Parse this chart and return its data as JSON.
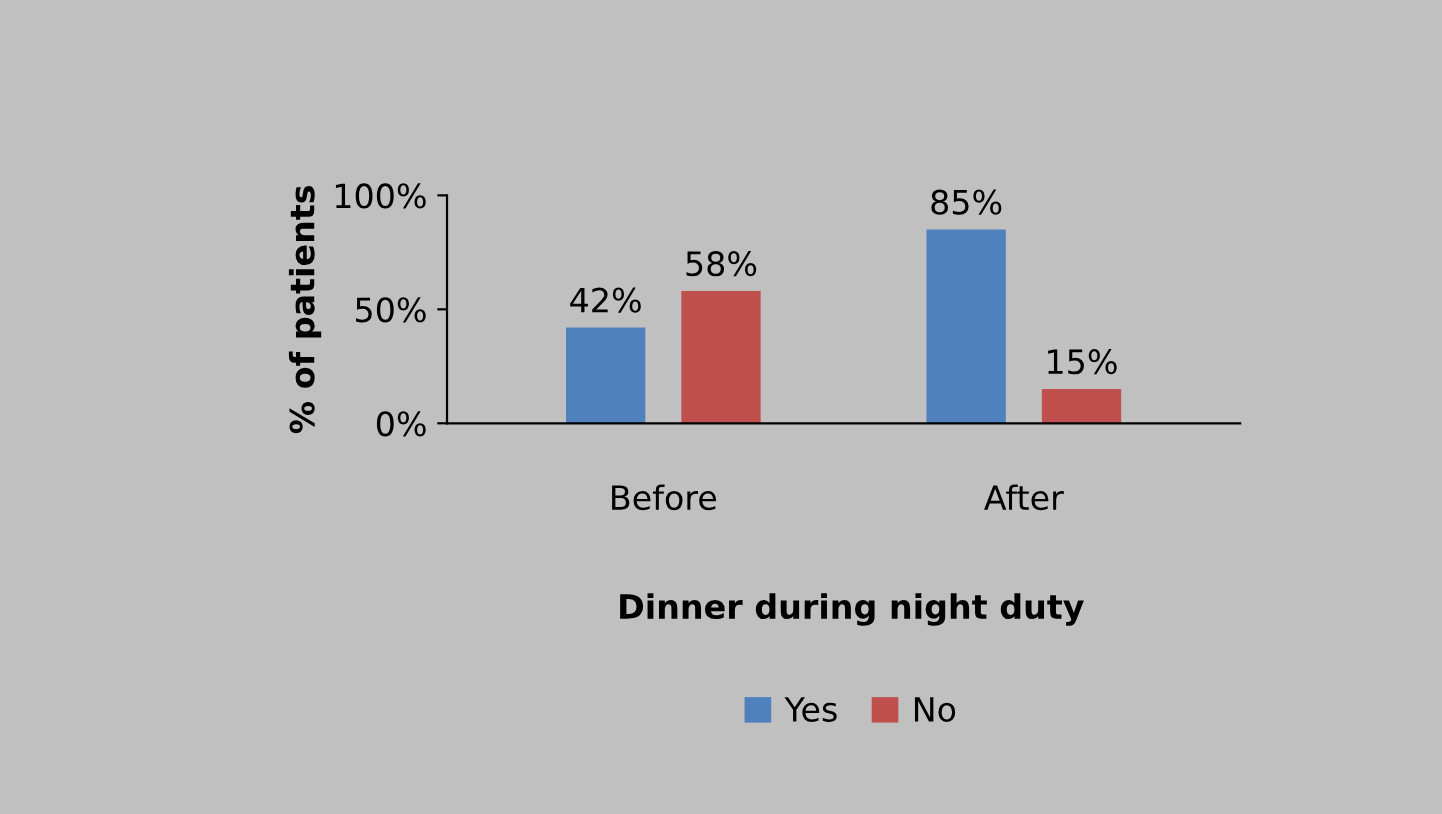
{
  "chart_data": {
    "type": "bar",
    "categories": [
      "Before",
      "After"
    ],
    "series": [
      {
        "name": "Yes",
        "color": "#4f81bd",
        "values": [
          42,
          85
        ],
        "value_labels": [
          "42%",
          "85%"
        ]
      },
      {
        "name": "No",
        "color": "#c0504d",
        "values": [
          58,
          15
        ],
        "value_labels": [
          "58%",
          "15%"
        ]
      }
    ],
    "ylim": [
      0,
      100
    ],
    "yticks": [
      {
        "value": 0,
        "label": "0%"
      },
      {
        "value": 50,
        "label": "50%"
      },
      {
        "value": 100,
        "label": "100%"
      }
    ],
    "ylabel": "% of patients",
    "xlabel": "Dinner during night duty",
    "legend": "bottom",
    "grid": false
  }
}
